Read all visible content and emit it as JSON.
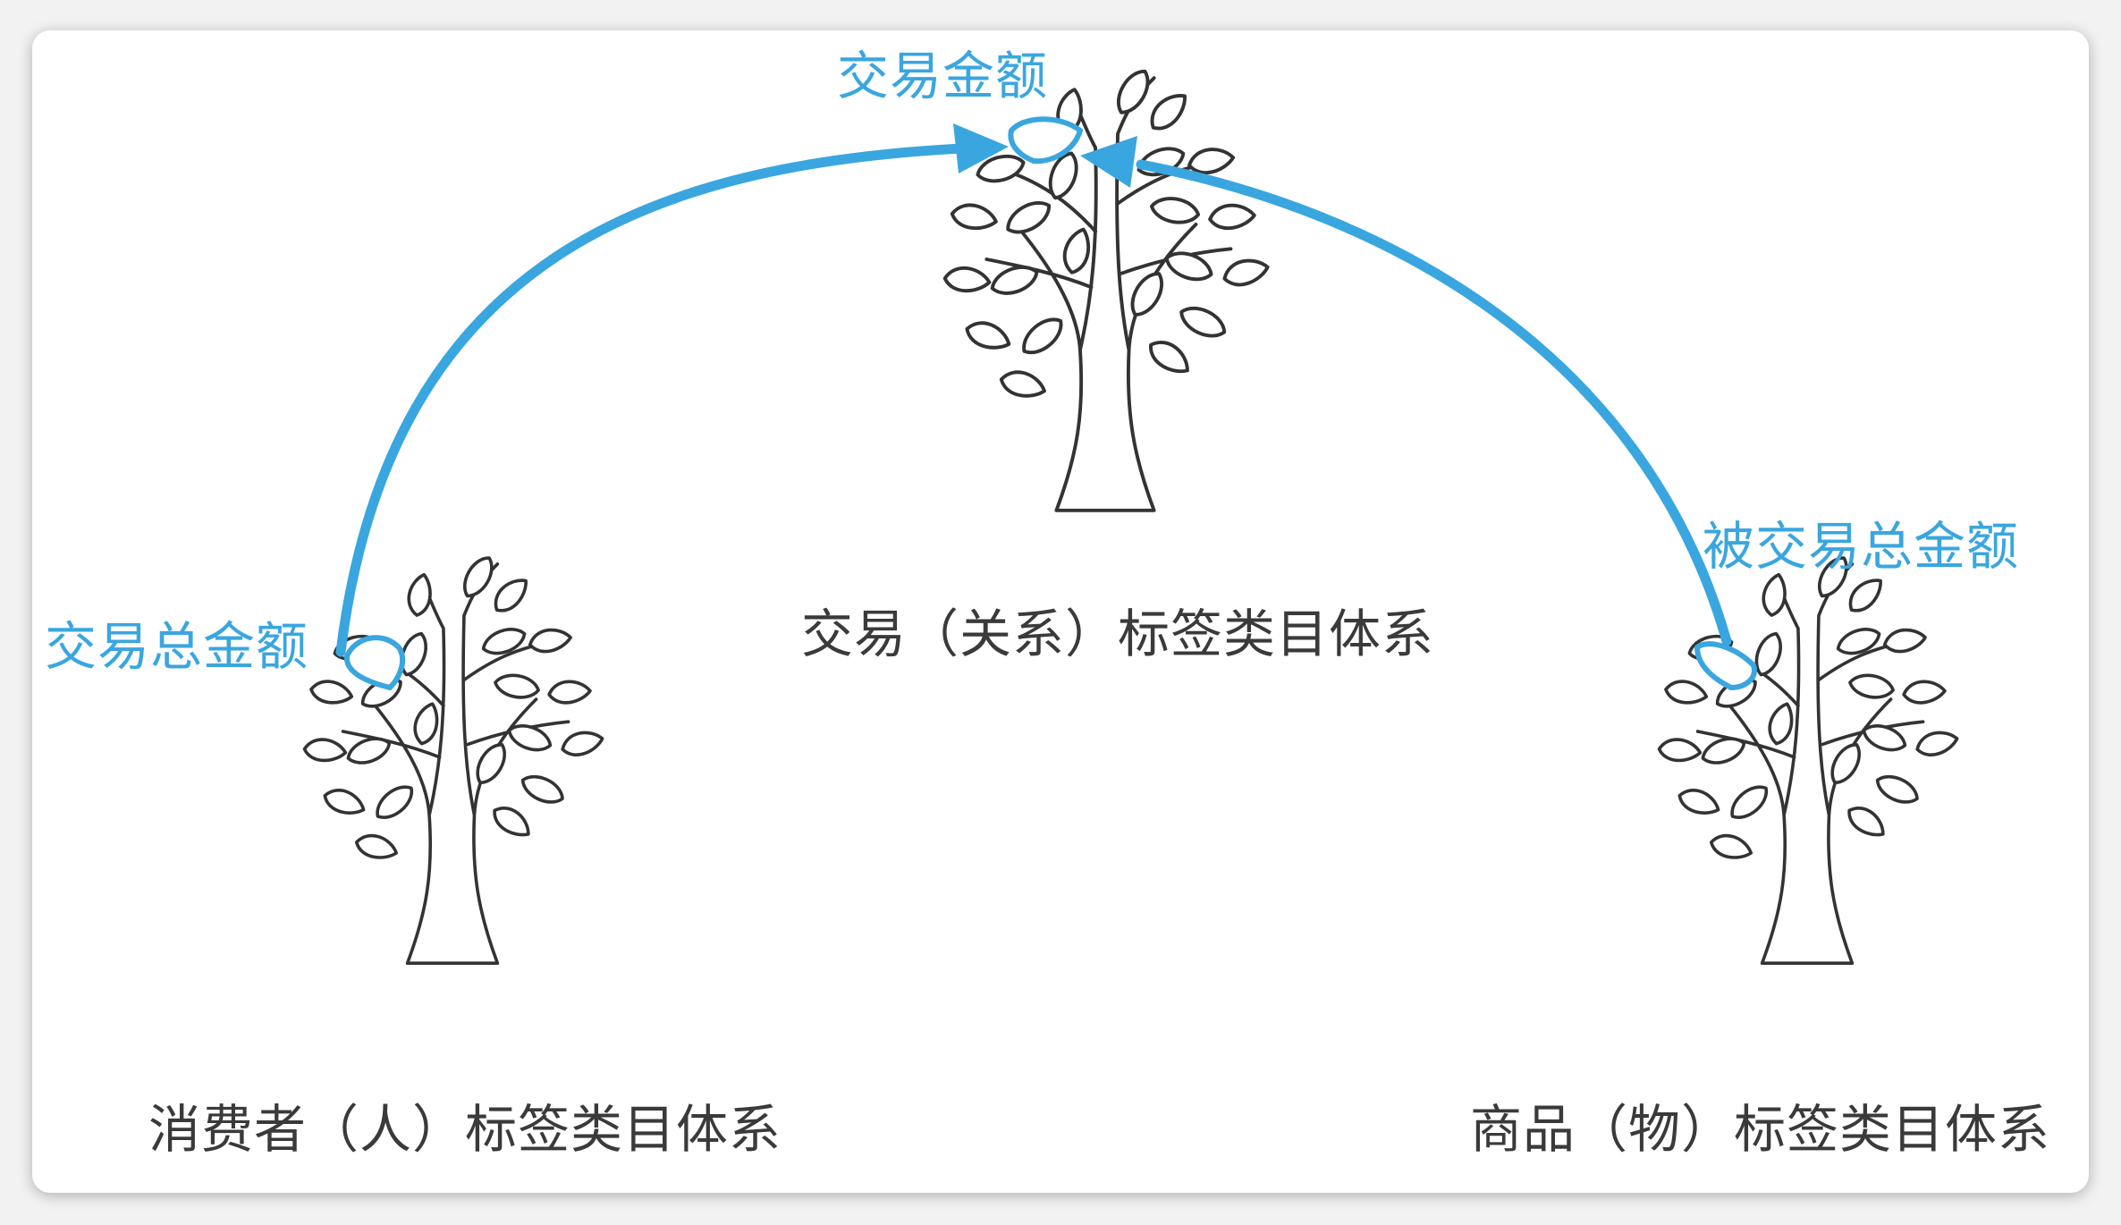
{
  "labels": {
    "consumer_tree": "消费者（人）标签类目体系",
    "transaction_tree": "交易（关系）标签类目体系",
    "product_tree": "商品（物）标签类目体系",
    "consumer_amount": "交易总金额",
    "transaction_amount": "交易金额",
    "product_amount": "被交易总金额"
  },
  "colors": {
    "accent": "#3aa6df",
    "line": "#333333",
    "text": "#3a3a3a"
  }
}
